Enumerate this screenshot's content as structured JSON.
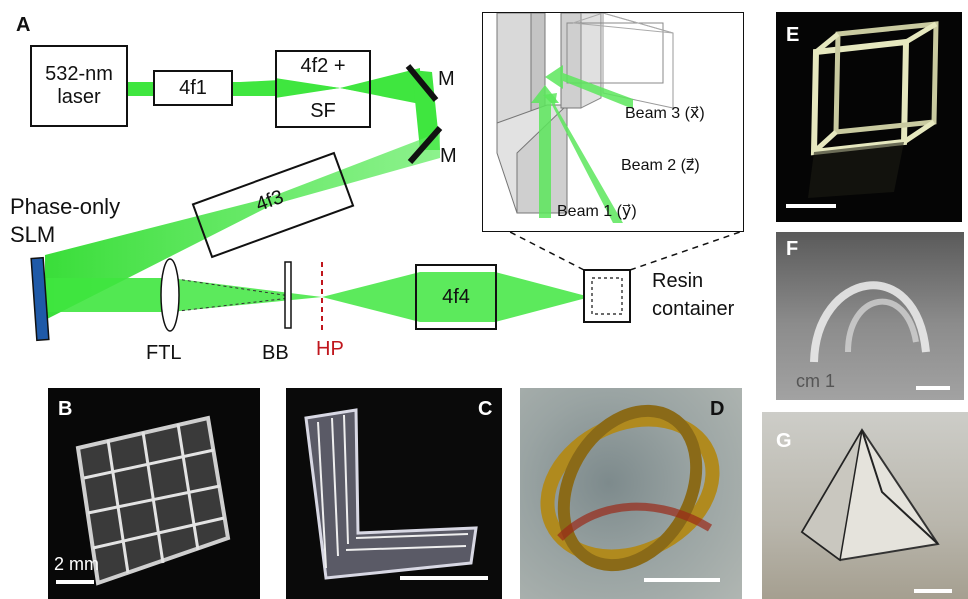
{
  "panel_labels": {
    "a": "A",
    "b": "B",
    "c": "C",
    "d": "D",
    "e": "E",
    "f": "F",
    "g": "G"
  },
  "setup": {
    "laser": "532-nm laser",
    "lens_4f1": "4f1",
    "lens_4f2_line1": "4f2 +",
    "lens_4f2_line2": "SF",
    "mirror_1": "M",
    "mirror_2": "M",
    "lens_4f3": "4f3",
    "slm_line1": "Phase-only",
    "slm_line2": "SLM",
    "ftl": "FTL",
    "bb": "BB",
    "hp": "HP",
    "lens_4f4": "4f4",
    "resin_line1": "Resin",
    "resin_line2": "container"
  },
  "inset": {
    "beam3": "Beam 3 (x⃗)",
    "beam2": "Beam 2 (z⃗)",
    "beam1": "Beam 1 (y⃗)"
  },
  "scale_bars": {
    "b": "2 mm"
  },
  "colors": {
    "beam": "#39e639",
    "hp": "#c0161d",
    "slm": "#1f5aa8"
  }
}
